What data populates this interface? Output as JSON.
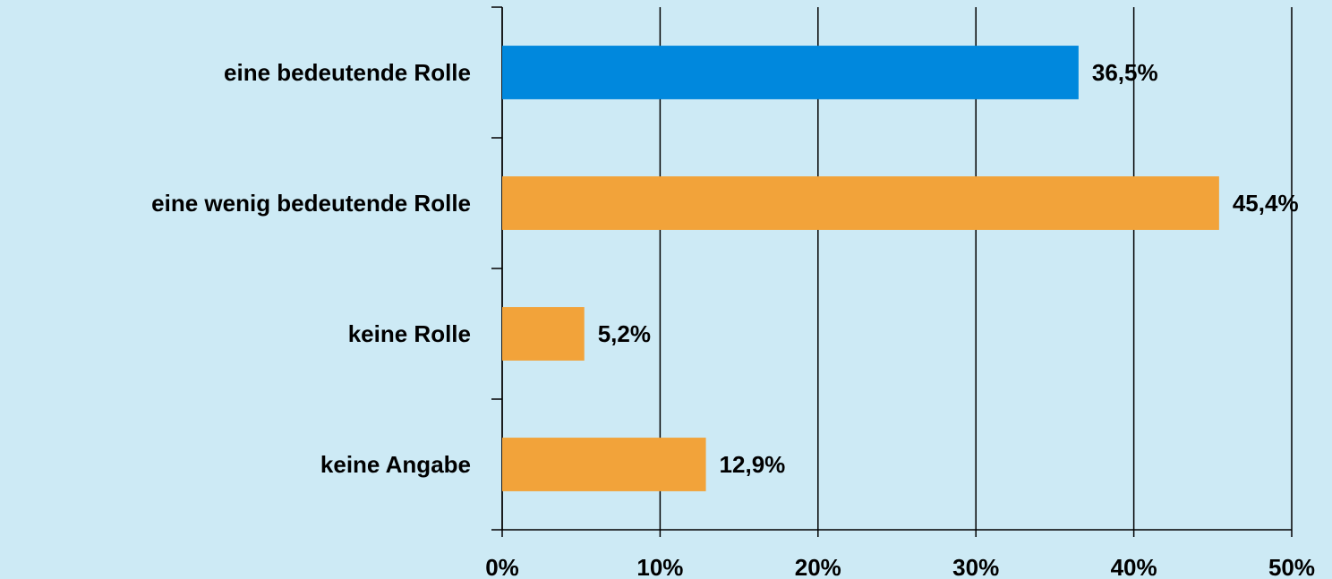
{
  "chart_data": {
    "type": "barh",
    "categories": [
      "eine bedeutende Rolle",
      "eine wenig bedeutende Rolle",
      "keine Rolle",
      "keine Angabe"
    ],
    "values": [
      36.5,
      45.4,
      5.2,
      12.9
    ],
    "value_labels": [
      "36,5%",
      "45,4%",
      "5,2%",
      "12,9%"
    ],
    "colors": [
      "#0088dd",
      "#f2a33a",
      "#f2a33a",
      "#f2a33a"
    ],
    "xlim": [
      0,
      50
    ],
    "xticks": [
      {
        "value": 0,
        "label": "0%"
      },
      {
        "value": 10,
        "label": "10%"
      },
      {
        "value": 20,
        "label": "20%"
      },
      {
        "value": 30,
        "label": "30%"
      },
      {
        "value": 40,
        "label": "40%"
      },
      {
        "value": 50,
        "label": "50%"
      }
    ],
    "grid": true
  }
}
